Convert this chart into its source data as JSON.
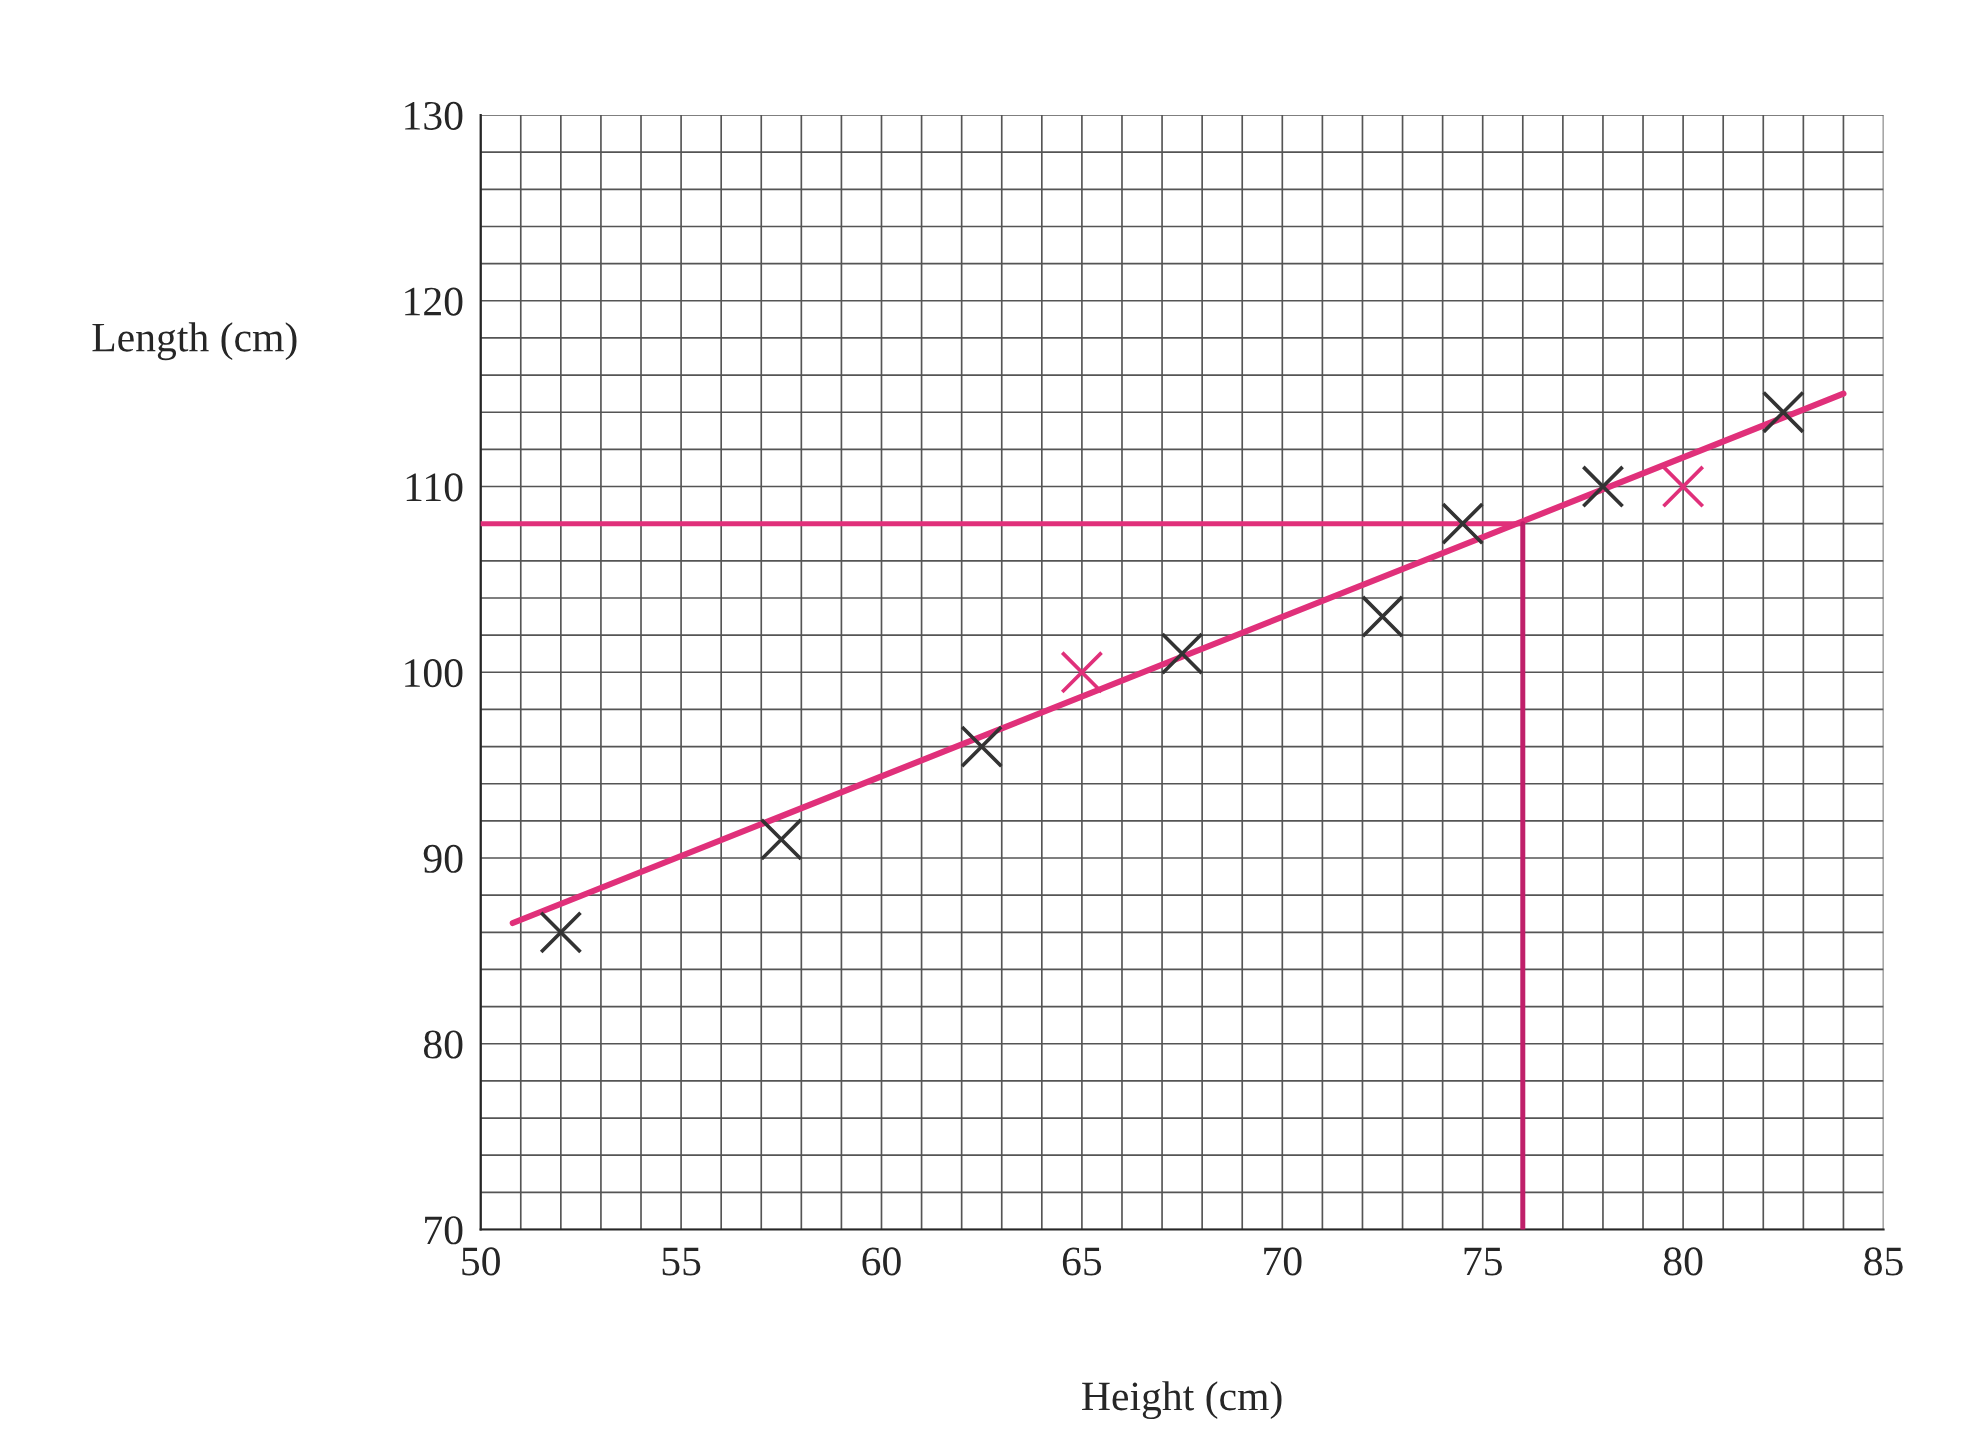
{
  "chart_data": {
    "type": "scatter",
    "xlabel": "Height (cm)",
    "ylabel": "Length (cm)",
    "xlim": [
      50,
      85
    ],
    "ylim": [
      70,
      130
    ],
    "xticks": [
      50,
      55,
      60,
      65,
      70,
      75,
      80,
      85
    ],
    "yticks": [
      70,
      80,
      90,
      100,
      110,
      120,
      130
    ],
    "grid": true,
    "series": [
      {
        "marker": "cross",
        "color": "#333333",
        "x": [
          52,
          57.5,
          62.5,
          67.5,
          72.5,
          74.5,
          78,
          82.5
        ],
        "values": [
          86,
          91,
          96,
          101,
          103,
          108,
          110,
          114
        ]
      },
      {
        "marker": "cross",
        "color": "#e0307a",
        "x": [
          65,
          80
        ],
        "values": [
          100,
          110
        ]
      },
      {
        "type": "line",
        "color": "#e0307a",
        "x": [
          50.8,
          84
        ],
        "values": [
          86.5,
          115
        ]
      }
    ],
    "ref_lines": [
      {
        "axis": "y",
        "value": 108,
        "color": "#e0307a"
      },
      {
        "axis": "x",
        "value": 76,
        "color": "#c0206a"
      }
    ]
  }
}
